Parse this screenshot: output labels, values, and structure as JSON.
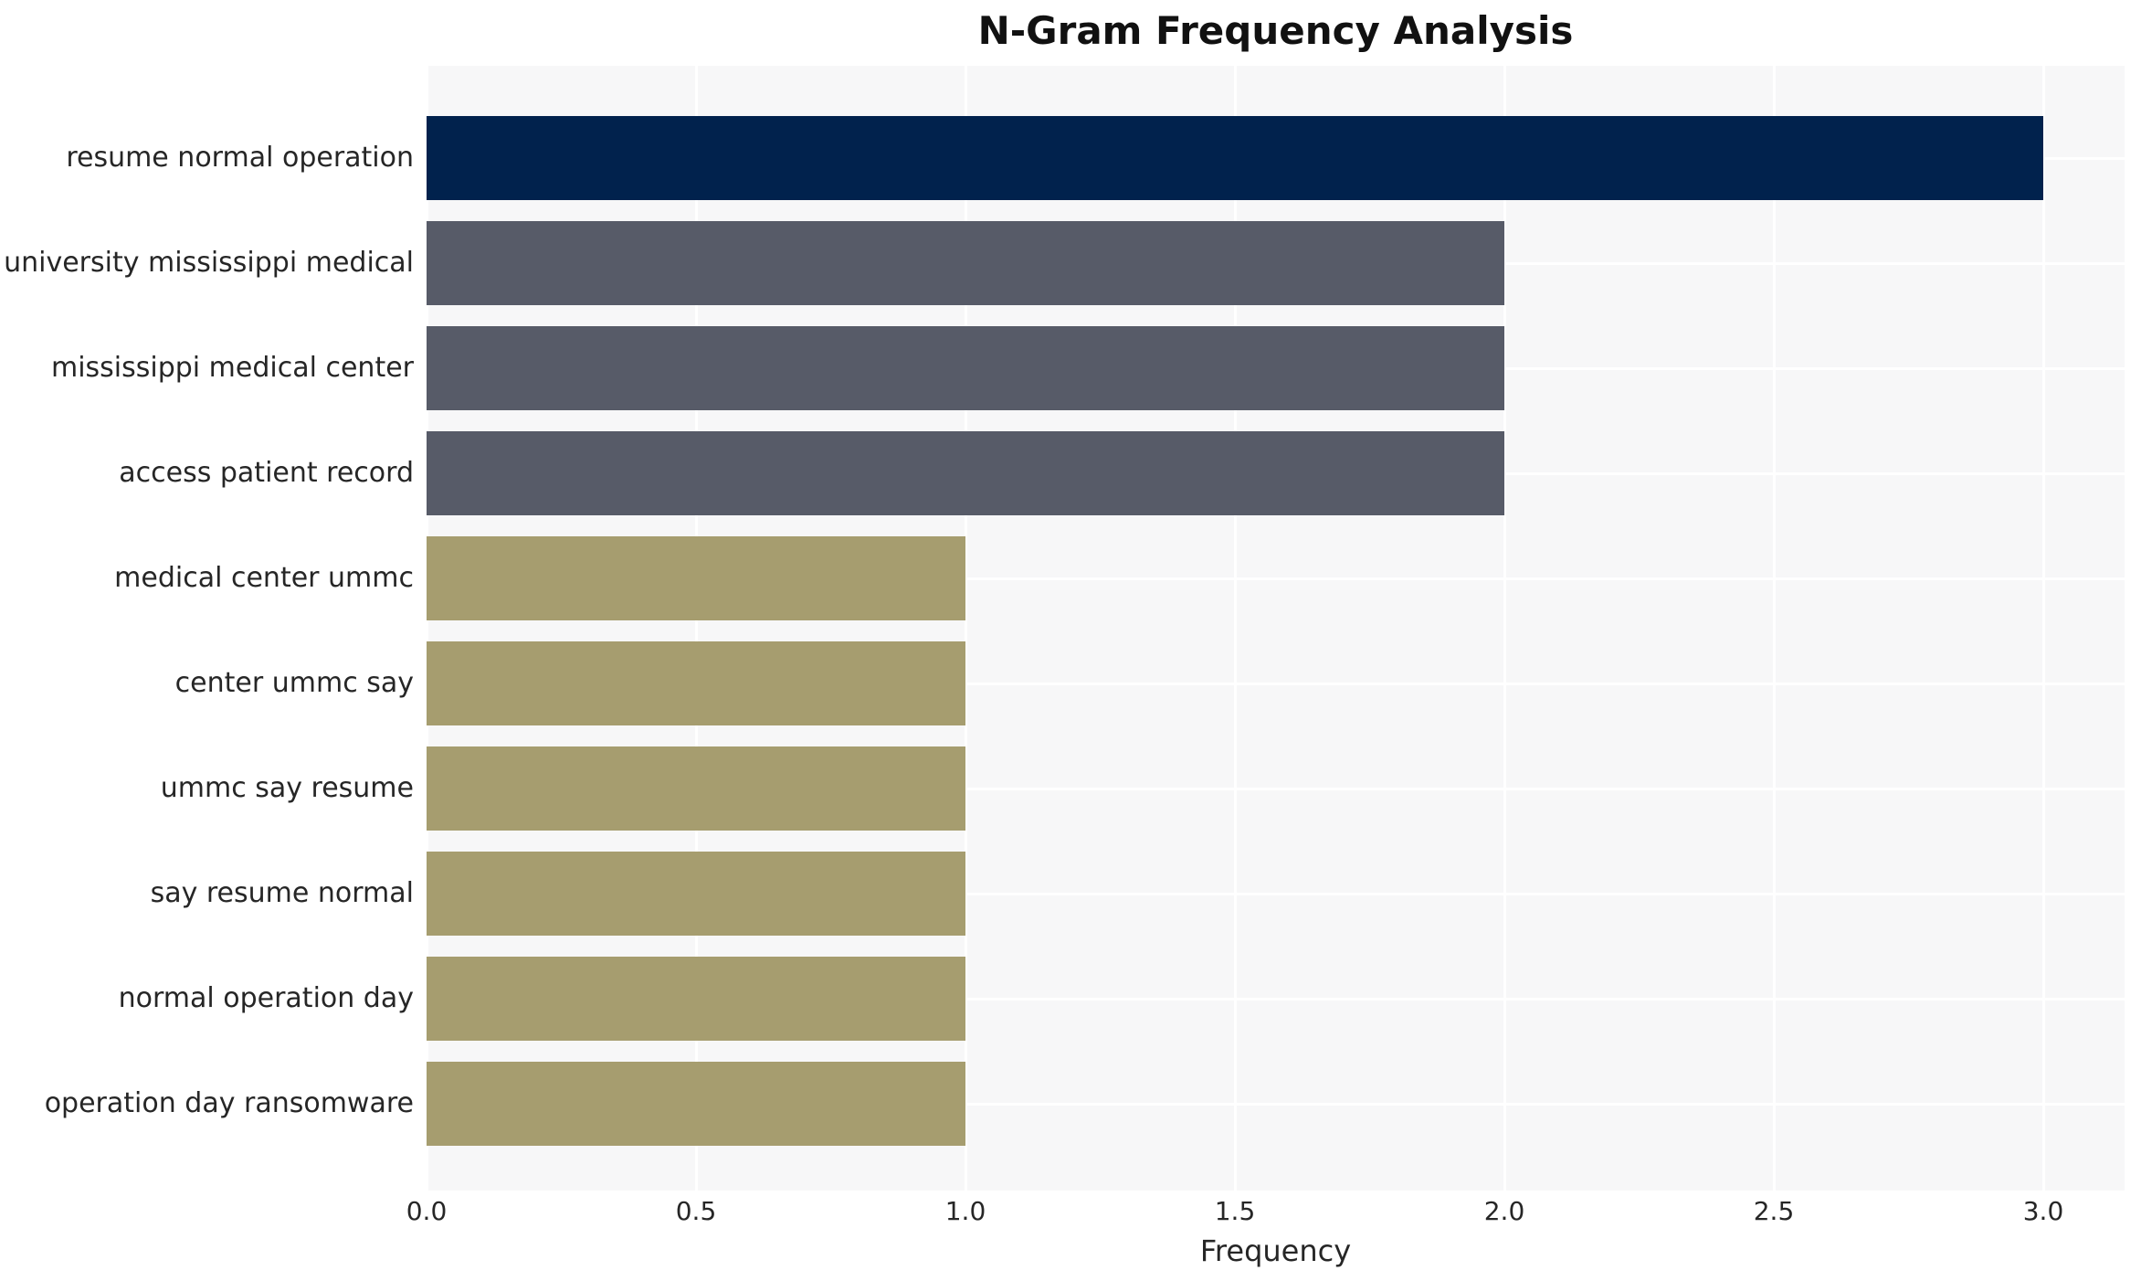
{
  "chart_data": {
    "type": "bar",
    "orientation": "horizontal",
    "title": "N-Gram Frequency Analysis",
    "xlabel": "Frequency",
    "ylabel": "",
    "categories": [
      "resume normal operation",
      "university mississippi medical",
      "mississippi medical center",
      "access patient record",
      "medical center ummc",
      "center ummc say",
      "ummc say resume",
      "say resume normal",
      "normal operation day",
      "operation day ransomware"
    ],
    "values": [
      3,
      2,
      2,
      2,
      1,
      1,
      1,
      1,
      1,
      1
    ],
    "bar_colors": [
      "#01224d",
      "#575b68",
      "#575b68",
      "#575b68",
      "#a69d6f",
      "#a69d6f",
      "#a69d6f",
      "#a69d6f",
      "#a69d6f",
      "#a69d6f"
    ],
    "xtick_labels": [
      "0.0",
      "0.5",
      "1.0",
      "1.5",
      "2.0",
      "2.5",
      "3.0"
    ],
    "xtick_values": [
      0,
      0.5,
      1,
      1.5,
      2,
      2.5,
      3
    ],
    "xlim": [
      0,
      3.15
    ],
    "grid": true,
    "legend": "none",
    "colors": {
      "plot_background": "#f7f7f8",
      "figure_background": "#ffffff",
      "grid_line": "#ffffff",
      "text": "#262626",
      "title_text": "#111111"
    }
  }
}
